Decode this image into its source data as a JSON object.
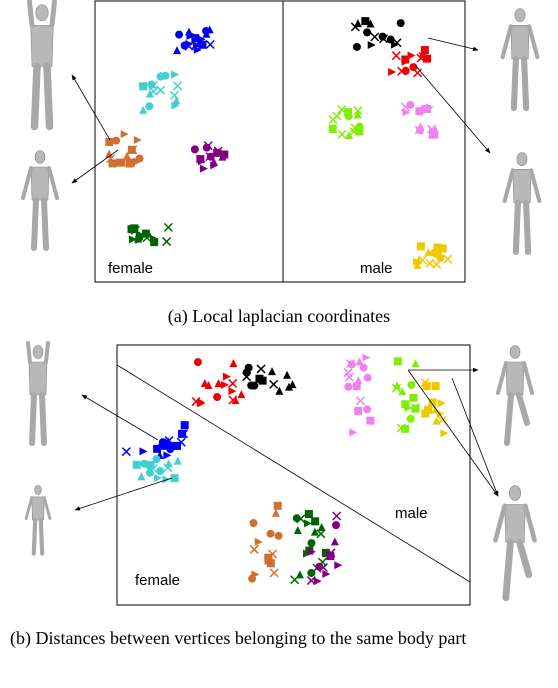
{
  "panel_a": {
    "left_label": "female",
    "right_label": "male",
    "caption": "(a) Local laplacian coordinates"
  },
  "panel_b": {
    "left_label": "female",
    "right_label": "male",
    "caption": "(b) Distances between vertices belonging to the same body part"
  }
}
